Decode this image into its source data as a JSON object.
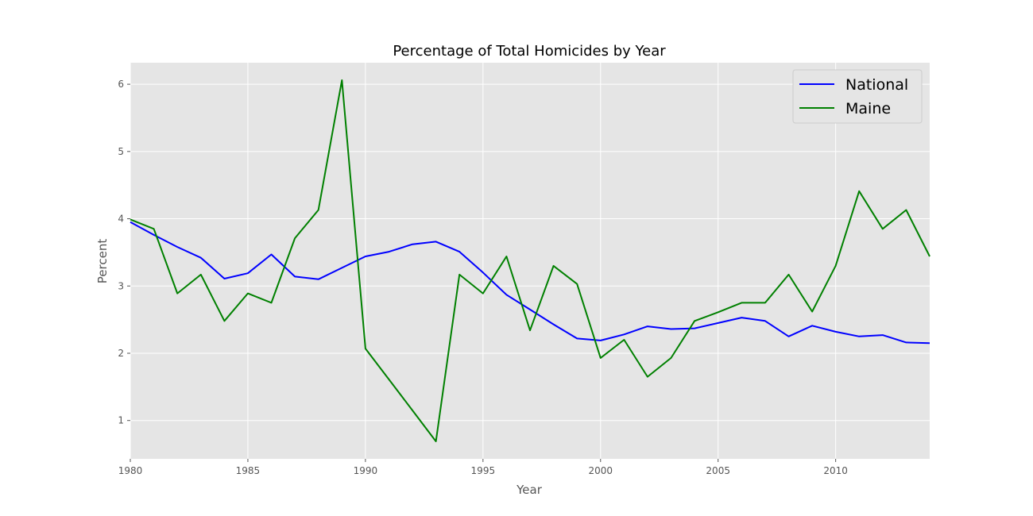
{
  "chart_data": {
    "type": "line",
    "title": "Percentage of Total Homicides by Year",
    "xlabel": "Year",
    "ylabel": "Percent",
    "xlim": [
      1980,
      2014
    ],
    "ylim": [
      0.43,
      6.32
    ],
    "grid": true,
    "legend_position": "top-right",
    "x_ticks": [
      1980,
      1985,
      1990,
      1995,
      2000,
      2005,
      2010
    ],
    "y_ticks": [
      1,
      2,
      3,
      4,
      5,
      6
    ],
    "colors": {
      "plot_background": "#e5e5e5",
      "grid": "#ffffff",
      "National": "#0000ff",
      "Maine": "#008000"
    },
    "x": [
      1980,
      1981,
      1982,
      1983,
      1984,
      1985,
      1986,
      1987,
      1988,
      1989,
      1990,
      1991,
      1992,
      1993,
      1994,
      1995,
      1996,
      1997,
      1998,
      1999,
      2000,
      2001,
      2002,
      2003,
      2004,
      2005,
      2006,
      2007,
      2008,
      2009,
      2010,
      2011,
      2012,
      2013,
      2014
    ],
    "series": [
      {
        "name": "National",
        "color": "#0000ff",
        "values": [
          3.95,
          3.76,
          3.58,
          3.42,
          3.11,
          3.19,
          3.47,
          3.14,
          3.1,
          3.27,
          3.44,
          3.51,
          3.62,
          3.66,
          3.51,
          3.2,
          2.87,
          2.65,
          2.43,
          2.22,
          2.19,
          2.28,
          2.4,
          2.36,
          2.37,
          2.45,
          2.53,
          2.48,
          2.25,
          2.41,
          2.32,
          2.25,
          2.27,
          2.16,
          2.15
        ]
      },
      {
        "name": "Maine",
        "color": "#008000",
        "values": [
          3.99,
          3.85,
          2.89,
          3.17,
          2.48,
          2.89,
          2.75,
          3.71,
          4.13,
          6.06,
          2.07,
          1.61,
          1.15,
          0.69,
          3.17,
          2.89,
          3.44,
          2.34,
          3.3,
          3.03,
          1.93,
          2.2,
          1.65,
          1.93,
          2.48,
          2.61,
          2.75,
          2.75,
          3.17,
          2.62,
          3.3,
          4.41,
          3.85,
          4.13,
          3.44
        ]
      }
    ]
  }
}
